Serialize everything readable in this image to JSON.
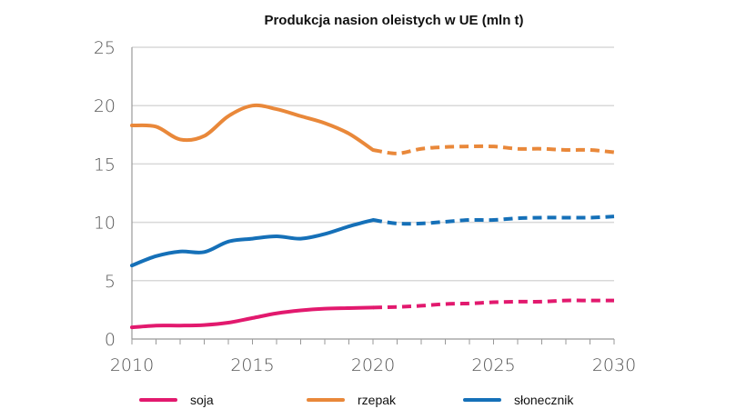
{
  "chart_data": {
    "type": "line",
    "title": "Produkcja nasion oleistych w UE (mln t)",
    "xlabel": "",
    "ylabel": "",
    "x": [
      2010,
      2011,
      2012,
      2013,
      2014,
      2015,
      2016,
      2017,
      2018,
      2019,
      2020,
      2021,
      2022,
      2023,
      2024,
      2025,
      2026,
      2027,
      2028,
      2029,
      2030
    ],
    "xlim": [
      2010,
      2030
    ],
    "ylim": [
      0,
      25
    ],
    "xticks": [
      2010,
      2015,
      2020,
      2025,
      2030
    ],
    "yticks": [
      0,
      5,
      10,
      15,
      20,
      25
    ],
    "grid": "horizontal",
    "legend": "bottom",
    "projection_from": 2020,
    "series": [
      {
        "name": "soja",
        "color": "#e2196e",
        "values": [
          1.0,
          1.15,
          1.15,
          1.2,
          1.4,
          1.8,
          2.2,
          2.45,
          2.6,
          2.65,
          2.7,
          2.75,
          2.85,
          3.0,
          3.05,
          3.15,
          3.2,
          3.2,
          3.3,
          3.3,
          3.3
        ]
      },
      {
        "name": "rzepak",
        "color": "#e9883a",
        "values": [
          18.3,
          18.2,
          17.1,
          17.4,
          19.1,
          20.0,
          19.7,
          19.1,
          18.5,
          17.6,
          16.2,
          15.9,
          16.3,
          16.45,
          16.5,
          16.5,
          16.3,
          16.3,
          16.2,
          16.2,
          16.0
        ]
      },
      {
        "name": "słonecznik",
        "color": "#1570b8",
        "values": [
          6.3,
          7.1,
          7.5,
          7.45,
          8.35,
          8.6,
          8.8,
          8.6,
          9.0,
          9.65,
          10.2,
          9.9,
          9.9,
          10.05,
          10.2,
          10.2,
          10.35,
          10.4,
          10.4,
          10.4,
          10.5
        ]
      }
    ]
  }
}
